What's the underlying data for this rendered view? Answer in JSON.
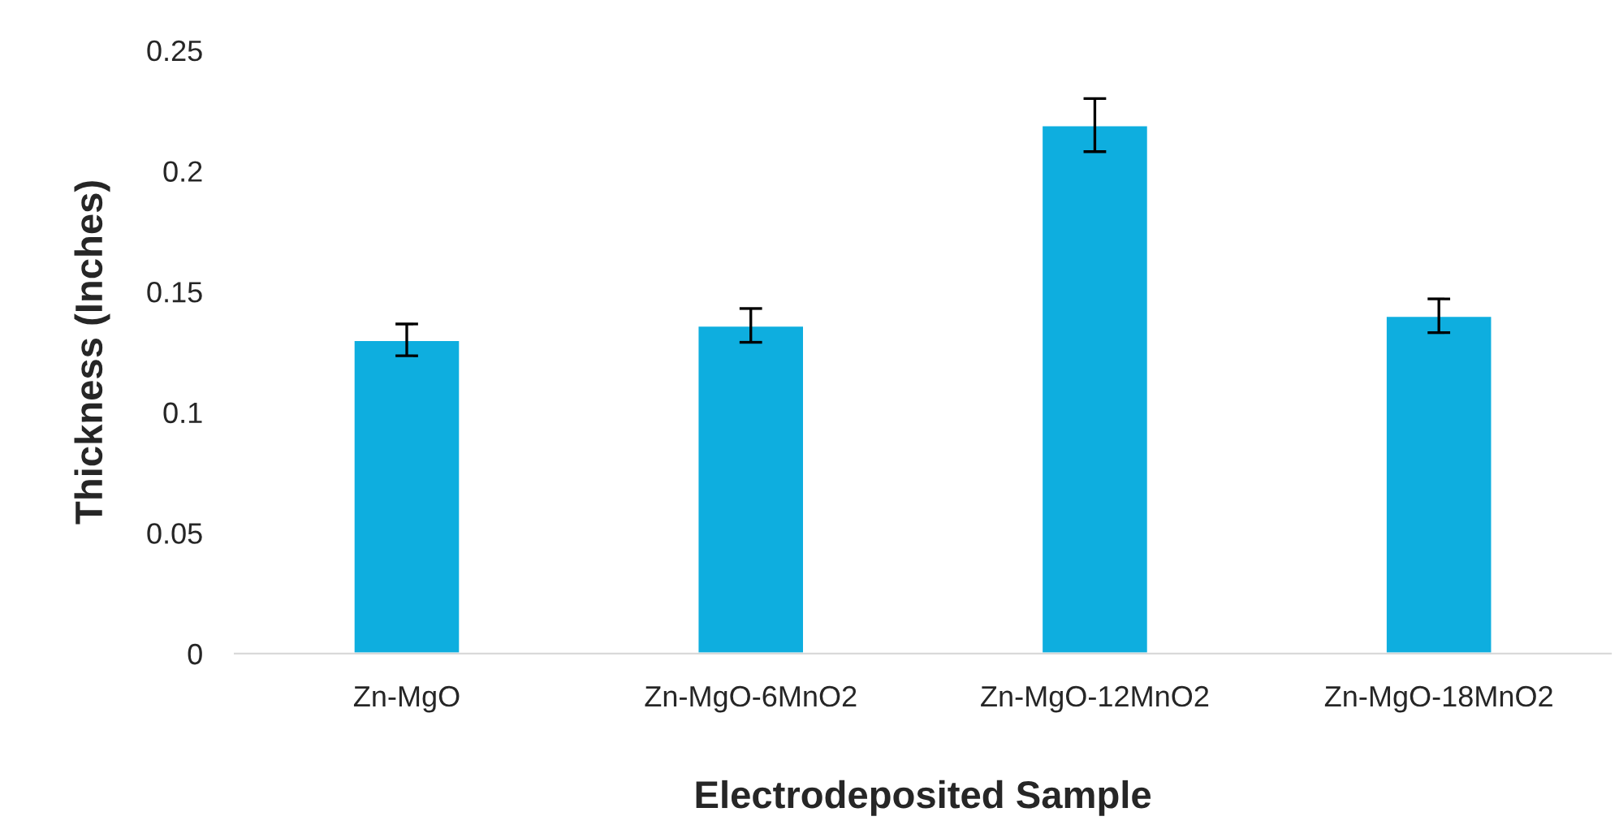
{
  "chart_data": {
    "type": "bar",
    "xlabel": "Electrodeposited Sample",
    "ylabel": "Thickness (Inches)",
    "categories": [
      "Zn-MgO",
      "Zn-MgO-6MnO2",
      "Zn-MgO-12MnO2",
      "Zn-MgO-18MnO2"
    ],
    "values": [
      0.13,
      0.136,
      0.219,
      0.14
    ],
    "errors": [
      0.0066,
      0.007,
      0.011,
      0.007
    ],
    "color": "#0eaedf",
    "ylim": [
      0,
      0.25
    ],
    "yticks": [
      {
        "value": 0,
        "label": "0"
      },
      0.05,
      {
        "value": 0.1,
        "label": "0.1"
      },
      0.15,
      {
        "value": 0.2,
        "label": "0.2"
      },
      0.25
    ],
    "grid": false,
    "legend": false
  }
}
